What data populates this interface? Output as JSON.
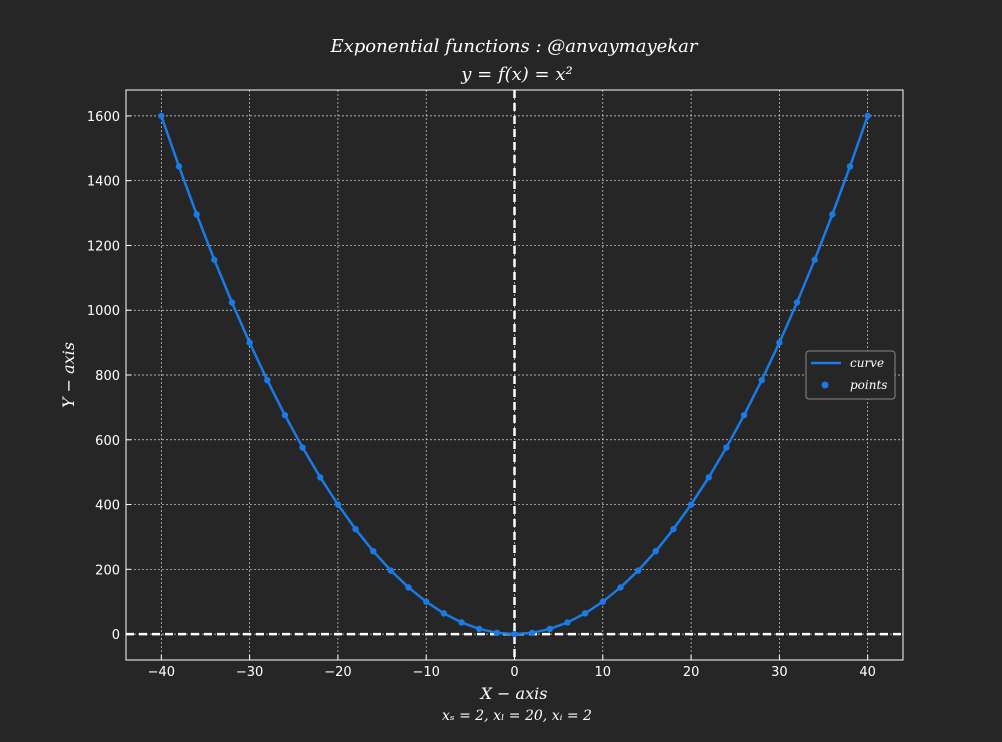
{
  "chart_data": {
    "type": "line",
    "title_line1": "Exponential functions : @anvaymayekar",
    "title_line2": "y = f(x) = x²",
    "xlabel": "X − axis",
    "ylabel": "Y − axis",
    "x_sublabel": "xₛ = 2, xₗ = 20, xᵢ = 2",
    "xlim": [
      -44,
      44
    ],
    "ylim": [
      -80,
      1680
    ],
    "x_ticks": [
      -40,
      -30,
      -20,
      -10,
      0,
      10,
      20,
      30,
      40
    ],
    "x_tick_labels": [
      "−40",
      "−30",
      "−20",
      "−10",
      "0",
      "10",
      "20",
      "30",
      "40"
    ],
    "y_ticks": [
      0,
      200,
      400,
      600,
      800,
      1000,
      1200,
      1400,
      1600
    ],
    "y_tick_labels": [
      "0",
      "200",
      "400",
      "600",
      "800",
      "1000",
      "1200",
      "1400",
      "1600"
    ],
    "grid": true,
    "legend_placement": "center-right",
    "series": [
      {
        "name": "curve",
        "kind": "line",
        "color": "#1a7ae6",
        "x": [
          -40,
          -38,
          -36,
          -34,
          -32,
          -30,
          -28,
          -26,
          -24,
          -22,
          -20,
          -18,
          -16,
          -14,
          -12,
          -10,
          -8,
          -6,
          -4,
          -2,
          0,
          2,
          4,
          6,
          8,
          10,
          12,
          14,
          16,
          18,
          20,
          22,
          24,
          26,
          28,
          30,
          32,
          34,
          36,
          38,
          40
        ],
        "y": [
          1600,
          1444,
          1296,
          1156,
          1024,
          900,
          784,
          676,
          576,
          484,
          400,
          324,
          256,
          196,
          144,
          100,
          64,
          36,
          16,
          4,
          0,
          4,
          16,
          36,
          64,
          100,
          144,
          196,
          256,
          324,
          400,
          484,
          576,
          676,
          784,
          900,
          1024,
          1156,
          1296,
          1444,
          1600
        ]
      },
      {
        "name": "points",
        "kind": "scatter",
        "color": "#1a7ae6",
        "x": [
          -40,
          -38,
          -36,
          -34,
          -32,
          -30,
          -28,
          -26,
          -24,
          -22,
          -20,
          -18,
          -16,
          -14,
          -12,
          -10,
          -8,
          -6,
          -4,
          -2,
          0,
          2,
          4,
          6,
          8,
          10,
          12,
          14,
          16,
          18,
          20,
          22,
          24,
          26,
          28,
          30,
          32,
          34,
          36,
          38,
          40
        ],
        "y": [
          1600,
          1444,
          1296,
          1156,
          1024,
          900,
          784,
          676,
          576,
          484,
          400,
          324,
          256,
          196,
          144,
          100,
          64,
          36,
          16,
          4,
          0,
          4,
          16,
          36,
          64,
          100,
          144,
          196,
          256,
          324,
          400,
          484,
          576,
          676,
          784,
          900,
          1024,
          1156,
          1296,
          1444,
          1600
        ]
      }
    ],
    "colors": {
      "background": "#262626",
      "foreground": "#ffffff",
      "series": "#1a7ae6"
    }
  }
}
